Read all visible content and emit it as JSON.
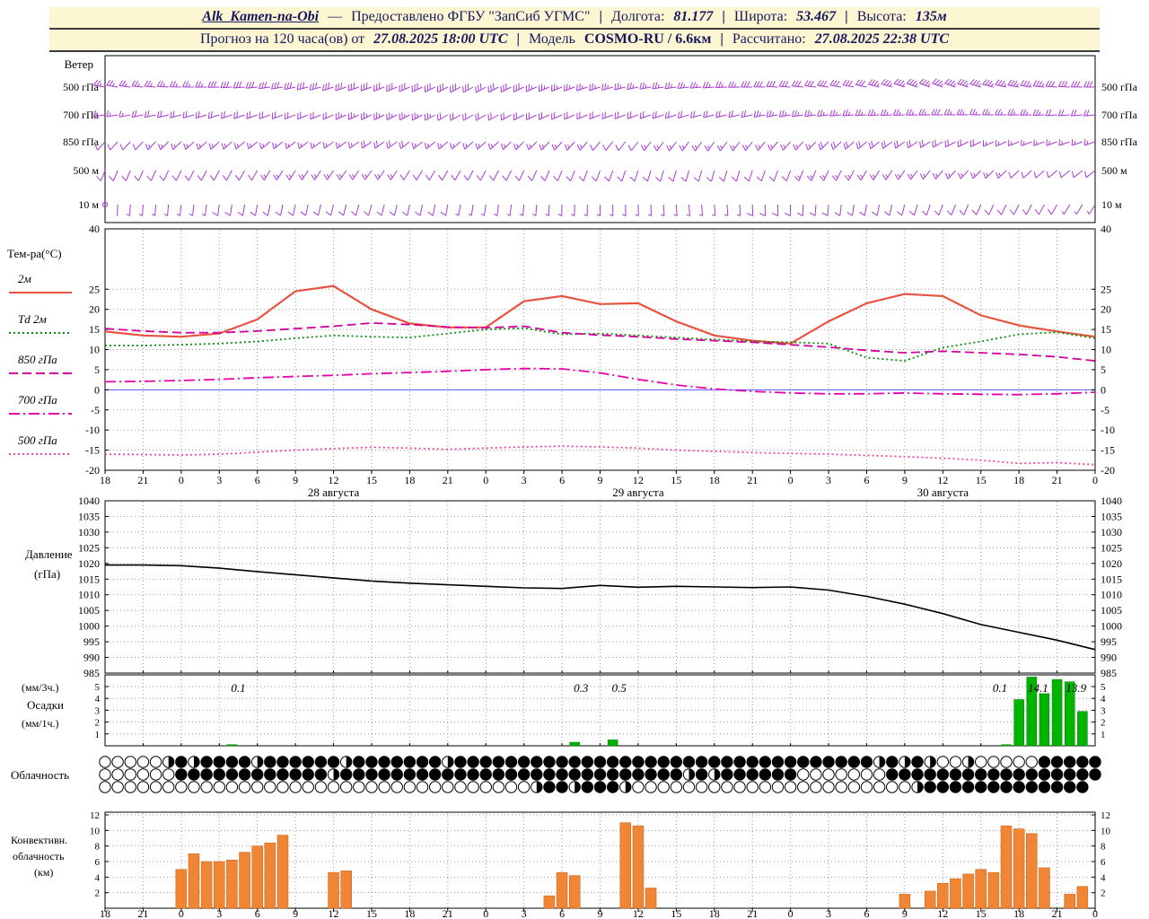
{
  "header": {
    "station": "Alk_Kamen-na-Obi",
    "dash": "—",
    "provider": "Предоставлено ФГБУ \"ЗапСиб УГМС\"",
    "sep": "|",
    "lon_label": "Долгота:",
    "lon": "81.177",
    "lat_label": "Широта:",
    "lat": "53.467",
    "alt_label": "Высота:",
    "alt": "135м",
    "forecast_label": "Прогноз на 120 часа(ов) от",
    "forecast_time": "27.08.2025 18:00 UTC",
    "model_label": "Модель",
    "model": "COSMO-RU / 6.6км",
    "calc_label": "Рассчитано:",
    "calc_time": "27.08.2025 22:38 UTC"
  },
  "labels": {
    "wind_title": "Ветер",
    "temp_title": "Тем-ра(°C)",
    "pressure_title_1": "Давление",
    "pressure_title_2": "(гПа)",
    "precip_title_1": "(мм/3ч.)",
    "precip_title_2": "Осадки",
    "precip_title_3": "(мм/1ч.)",
    "cloud_title": "Облачность",
    "conv_title_1": "Конвективн.",
    "conv_title_2": "облачность",
    "conv_title_3": "(км)"
  },
  "colors": {
    "wind_barb": "#a83bd2",
    "t2m": "#e8533f",
    "td2m": "#0a8c0a",
    "t850": "#d4009e",
    "t700": "#e800a8",
    "t500": "#f0459f",
    "pressure": "#000000",
    "precip_bar": "#00b400",
    "conv_bar": "#ef8535",
    "zero_line": "#5555ff",
    "grid": "#999999",
    "header_bg": "#fdf6d2",
    "header_text": "#17175e"
  },
  "axes": {
    "hours": [
      "18",
      "21",
      "0",
      "3",
      "6",
      "9",
      "12",
      "15",
      "18",
      "21",
      "0",
      "3",
      "6",
      "9",
      "12",
      "15",
      "18",
      "21",
      "0",
      "3",
      "6",
      "9",
      "12",
      "15",
      "18",
      "21",
      "0"
    ],
    "dates": [
      {
        "label": "28 августа",
        "tick": 6
      },
      {
        "label": "29 августа",
        "tick": 14
      },
      {
        "label": "30 августа",
        "tick": 22
      }
    ],
    "temp_ticks": [
      40,
      25,
      20,
      15,
      10,
      5,
      0,
      -5,
      -10,
      -15,
      -20
    ],
    "pressure_ticks": [
      1040,
      1035,
      1030,
      1025,
      1020,
      1015,
      1010,
      1005,
      1000,
      995,
      990,
      985
    ],
    "precip_ticks": [
      5,
      4,
      3,
      2,
      1
    ],
    "conv_ticks": [
      12,
      10,
      8,
      6,
      4,
      2
    ],
    "wind_levels": [
      "500 гПа",
      "700 гПа",
      "850 гПа",
      "500 м",
      "10 м"
    ]
  },
  "chart_data": [
    {
      "name": "wind",
      "type": "wind-barbs",
      "x_step_hours": 3,
      "unit": "м/с",
      "levels": [
        {
          "label": "500 гПа",
          "dir": [
            280,
            276,
            272,
            268,
            264,
            258,
            252,
            250,
            246,
            242,
            240,
            244,
            248,
            252,
            258,
            262,
            266,
            270,
            274,
            278,
            282,
            288,
            290,
            286,
            280,
            274,
            270
          ],
          "speed": [
            12,
            12,
            13,
            14,
            14,
            15,
            15,
            16,
            16,
            15,
            14,
            14,
            13,
            13,
            12,
            12,
            13,
            14,
            15,
            16,
            16,
            17,
            18,
            18,
            17,
            16,
            15
          ]
        },
        {
          "label": "700 гПа",
          "dir": [
            262,
            258,
            255,
            252,
            250,
            248,
            246,
            244,
            242,
            240,
            240,
            242,
            246,
            248,
            250,
            252,
            256,
            258,
            260,
            263,
            266,
            268,
            270,
            271,
            269,
            266,
            264
          ],
          "speed": [
            8,
            9,
            9,
            10,
            10,
            11,
            11,
            12,
            12,
            11,
            10,
            10,
            9,
            9,
            10,
            10,
            11,
            11,
            12,
            12,
            13,
            13,
            14,
            13,
            12,
            11,
            10
          ]
        },
        {
          "label": "850 гПа",
          "dir": [
            222,
            224,
            226,
            228,
            230,
            232,
            234,
            235,
            233,
            230,
            228,
            225,
            222,
            220,
            218,
            216,
            215,
            218,
            221,
            225,
            230,
            235,
            240,
            244,
            248,
            250,
            252
          ],
          "speed": [
            6,
            6,
            7,
            7,
            8,
            8,
            8,
            9,
            9,
            8,
            8,
            7,
            7,
            6,
            6,
            7,
            7,
            8,
            8,
            9,
            9,
            10,
            10,
            9,
            8,
            8,
            7
          ]
        },
        {
          "label": "500 м",
          "dir": [
            202,
            204,
            206,
            208,
            210,
            212,
            214,
            215,
            212,
            210,
            208,
            205,
            202,
            200,
            198,
            196,
            195,
            198,
            201,
            205,
            210,
            215,
            220,
            224,
            227,
            230,
            232
          ],
          "speed": [
            4,
            5,
            5,
            6,
            6,
            7,
            7,
            7,
            6,
            6,
            5,
            5,
            5,
            4,
            4,
            5,
            5,
            6,
            6,
            7,
            7,
            8,
            8,
            7,
            6,
            6,
            5
          ]
        },
        {
          "label": "10 м",
          "dir": [
            182,
            184,
            186,
            188,
            190,
            192,
            194,
            195,
            192,
            190,
            188,
            185,
            182,
            180,
            178,
            176,
            175,
            178,
            181,
            185,
            190,
            195,
            200,
            204,
            207,
            210,
            212
          ],
          "speed": [
            0,
            3,
            3,
            4,
            4,
            5,
            5,
            5,
            4,
            4,
            3,
            3,
            3,
            2,
            2,
            3,
            3,
            4,
            4,
            5,
            5,
            6,
            6,
            5,
            4,
            4,
            3
          ]
        }
      ]
    },
    {
      "name": "temperature",
      "type": "line",
      "x_step_hours": 3,
      "ylim": [
        -20,
        40
      ],
      "series": [
        {
          "name": "2м",
          "style": "solid",
          "color_key": "t2m",
          "values": [
            14.5,
            13.5,
            13.2,
            14,
            17.5,
            24.5,
            25.8,
            20,
            16.5,
            15.5,
            15.5,
            22,
            23.3,
            21.3,
            21.5,
            17,
            13.5,
            12.2,
            11.5,
            17,
            21.5,
            23.8,
            23.3,
            18.5,
            16,
            14.5,
            13.2
          ]
        },
        {
          "name": "Td 2м",
          "style": "dot",
          "color_key": "td2m",
          "values": [
            11,
            11,
            11.2,
            11.5,
            12,
            12.8,
            13.5,
            13.2,
            13,
            14,
            15,
            15.3,
            13.8,
            14,
            13.5,
            13,
            12.5,
            12,
            11.8,
            11.5,
            8,
            7.2,
            10.5,
            12,
            13.8,
            14.3,
            12.8
          ]
        },
        {
          "name": "850 гПа",
          "style": "longdash",
          "color_key": "t850",
          "values": [
            15.2,
            14.6,
            14.2,
            14.2,
            14.6,
            15.2,
            15.8,
            16.6,
            16.2,
            15.6,
            15.4,
            15.8,
            14.2,
            13.6,
            13.2,
            12.6,
            12.2,
            11.8,
            11.2,
            10.6,
            9.8,
            9.2,
            9.6,
            9.2,
            8.8,
            8.2,
            7.2
          ]
        },
        {
          "name": "700 гПа",
          "style": "dashdot",
          "color_key": "t700",
          "values": [
            2,
            2.1,
            2.3,
            2.6,
            3,
            3.3,
            3.6,
            4,
            4.3,
            4.6,
            5,
            5.3,
            5.2,
            4.2,
            2.6,
            1.2,
            0.2,
            -0.4,
            -0.8,
            -1,
            -1,
            -0.8,
            -1,
            -1.1,
            -1.2,
            -1,
            -0.6
          ]
        },
        {
          "name": "500 гПа",
          "style": "dot",
          "color_key": "t500",
          "values": [
            -16,
            -16.1,
            -16.2,
            -16,
            -15.5,
            -15,
            -14.6,
            -14.3,
            -14.5,
            -14.8,
            -14.5,
            -14.2,
            -14,
            -14.2,
            -14.5,
            -15,
            -15.3,
            -15.6,
            -15.8,
            -16,
            -16.3,
            -16.6,
            -17,
            -17.5,
            -18.3,
            -18.1,
            -18.6
          ]
        }
      ]
    },
    {
      "name": "pressure",
      "type": "line",
      "x_step_hours": 3,
      "ylim": [
        985,
        1040
      ],
      "values": [
        1019.5,
        1019.5,
        1019.3,
        1018.5,
        1017.4,
        1016.4,
        1015.4,
        1014.4,
        1013.7,
        1013.2,
        1012.7,
        1012.2,
        1012.0,
        1013.0,
        1012.4,
        1012.7,
        1012.5,
        1012.3,
        1012.5,
        1011.5,
        1009.5,
        1007.0,
        1004.0,
        1000.5,
        998.0,
        995.5,
        992.5
      ]
    },
    {
      "name": "precipitation",
      "type": "bar",
      "ylim": [
        0,
        6
      ],
      "hourly": {
        "10": 0.1,
        "37": 0.3,
        "40": 0.5,
        "71": 0.1,
        "72": 3.9,
        "73": 5.8,
        "74": 4.4,
        "75": 5.6,
        "76": 5.4,
        "77": 2.9
      },
      "labels_3h": [
        {
          "tick_center": 3.5,
          "text": "0.1"
        },
        {
          "tick_center": 12.5,
          "text": "0.3"
        },
        {
          "tick_center": 13.5,
          "text": "0.5"
        },
        {
          "tick_center": 23.5,
          "text": "0.1"
        },
        {
          "tick_center": 24.5,
          "text": "14.1"
        },
        {
          "tick_center": 25.5,
          "text": "13.9"
        }
      ]
    },
    {
      "name": "cloudiness",
      "type": "heatmap",
      "scale": "0=ясно, 2=половина, 4=сплошная",
      "rows": [
        "0000024244442444444244444442444444444444444444444444444444444242420020000044444444444",
        "0000004444444444442444444444444444444444444444242444444000000044444444444444444",
        "000000000000000000000000000000000024424442000000000000000000000024444444444444"
      ]
    },
    {
      "name": "convective_cloudiness",
      "type": "bar",
      "unit": "км",
      "ylim": [
        0,
        12
      ],
      "hourly": {
        "6": 5,
        "7": 7,
        "8": 6,
        "9": 6,
        "10": 6.2,
        "11": 7.2,
        "12": 8,
        "13": 8.4,
        "14": 9.4,
        "18": 4.6,
        "19": 4.8,
        "35": 1.6,
        "36": 4.6,
        "37": 4.2,
        "41": 11,
        "42": 10.6,
        "43": 2.6,
        "63": 1.8,
        "65": 2.2,
        "66": 3.2,
        "67": 3.8,
        "68": 4.4,
        "69": 5,
        "70": 4.6,
        "71": 10.6,
        "72": 10.2,
        "73": 9.6,
        "74": 5.2,
        "76": 1.8,
        "77": 2.8
      }
    }
  ]
}
